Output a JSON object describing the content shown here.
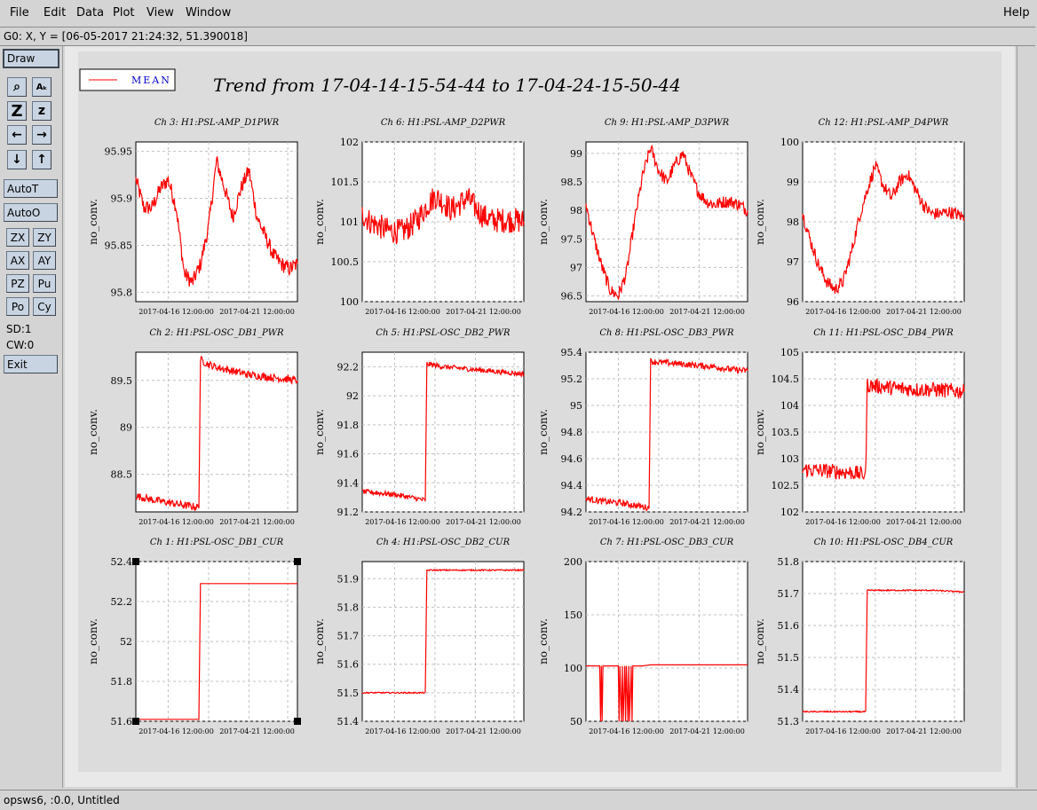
{
  "menu": {
    "items": [
      "File",
      "Edit",
      "Data",
      "Plot",
      "View",
      "Window"
    ],
    "help": "Help"
  },
  "coord_readout": "G0: X, Y = [06-05-2017 21:24:32, 51.390018]",
  "toolbar": {
    "draw": "Draw",
    "icons": [
      "magnify-icon",
      "text-size-icon",
      "zoom-large-icon",
      "zoom-small-icon",
      "arrow-left-icon",
      "arrow-right-icon",
      "arrow-down-icon",
      "arrow-up-icon"
    ],
    "icon_glyphs": [
      "⌕",
      "Aₖ",
      "Z",
      "z",
      "←",
      "→",
      "↓",
      "↑"
    ],
    "autot": "AutoT",
    "autoo": "AutoO",
    "small_buttons": [
      "ZX",
      "ZY",
      "AX",
      "AY",
      "PZ",
      "Pu",
      "Po",
      "Cy"
    ],
    "sd": "SD:1",
    "cw": "CW:0",
    "exit": "Exit"
  },
  "status": "opsws6, :0.0, Untitled",
  "legend": {
    "label": "MEAN",
    "color": "#ff0000"
  },
  "main_title": "Trend from 17-04-14-15-54-44 to 17-04-24-15-50-44",
  "colors": {
    "trace": "#ff0000",
    "legend_text": "#0000cc",
    "grid": "#c0c0c0"
  },
  "chart_data": [
    {
      "type": "line",
      "title": "Ch 3: H1:PSL-AMP_D1PWR",
      "ylabel": "no_conv.",
      "yticks": [
        "95.95",
        "95.9",
        "95.85",
        "95.8"
      ],
      "tick_vals": [
        95.95,
        95.9,
        95.85,
        95.8
      ],
      "ylim": [
        95.79,
        95.96
      ],
      "xticks": [
        "2017-04-16 12:00:00",
        "2017-04-21 12:00:00"
      ],
      "x": [
        0,
        0.05,
        0.1,
        0.15,
        0.2,
        0.25,
        0.3,
        0.35,
        0.4,
        0.45,
        0.5,
        0.55,
        0.6,
        0.65,
        0.7,
        0.75,
        0.8,
        0.85,
        0.9,
        0.95,
        1
      ],
      "values": [
        95.92,
        95.89,
        95.89,
        95.91,
        95.92,
        95.89,
        95.82,
        95.81,
        95.83,
        95.87,
        95.94,
        95.91,
        95.88,
        95.91,
        95.93,
        95.88,
        95.86,
        95.84,
        95.83,
        95.825,
        95.83
      ],
      "noise": 0.012
    },
    {
      "type": "line",
      "title": "Ch 6: H1:PSL-AMP_D2PWR",
      "ylabel": "no_conv.",
      "yticks": [
        "102",
        "101.5",
        "101",
        "100.5",
        "100"
      ],
      "tick_vals": [
        102,
        101.5,
        101,
        100.5,
        100
      ],
      "ylim": [
        100,
        102
      ],
      "xticks": [
        "2017-04-16 12:00:00",
        "2017-04-21 12:00:00"
      ],
      "x": [
        0,
        0.05,
        0.1,
        0.15,
        0.2,
        0.25,
        0.3,
        0.35,
        0.4,
        0.45,
        0.5,
        0.55,
        0.6,
        0.65,
        0.7,
        0.75,
        0.8,
        0.85,
        0.9,
        0.95,
        1
      ],
      "values": [
        101.1,
        101.0,
        100.95,
        100.9,
        100.88,
        100.88,
        100.95,
        101.05,
        101.2,
        101.32,
        101.25,
        101.15,
        101.22,
        101.3,
        101.18,
        101.07,
        101.02,
        101.02,
        101.02,
        101.02,
        101.0
      ],
      "noise": 0.02
    },
    {
      "type": "line",
      "title": "Ch 9: H1:PSL-AMP_D3PWR",
      "ylabel": "no_conv.",
      "yticks": [
        "99",
        "98.5",
        "98",
        "97.5",
        "97",
        "96.5"
      ],
      "tick_vals": [
        99,
        98.5,
        98,
        97.5,
        97,
        96.5
      ],
      "ylim": [
        96.4,
        99.2
      ],
      "xticks": [
        "2017-04-16 12:00:00",
        "2017-04-21 12:00:00"
      ],
      "x": [
        0,
        0.05,
        0.1,
        0.15,
        0.2,
        0.25,
        0.3,
        0.35,
        0.4,
        0.45,
        0.5,
        0.55,
        0.6,
        0.65,
        0.7,
        0.75,
        0.8,
        0.85,
        0.9,
        0.95,
        1
      ],
      "values": [
        98.1,
        97.5,
        97.0,
        96.6,
        96.5,
        96.9,
        97.8,
        98.6,
        99.1,
        98.7,
        98.5,
        98.8,
        99.0,
        98.6,
        98.3,
        98.15,
        98.1,
        98.15,
        98.15,
        98.1,
        98.0
      ],
      "noise": 0.01
    },
    {
      "type": "line",
      "title": "Ch 12: H1:PSL-AMP_D4PWR",
      "ylabel": "no_conv.",
      "yticks": [
        "100",
        "99",
        "98",
        "97",
        "96"
      ],
      "tick_vals": [
        100,
        99,
        98,
        97,
        96
      ],
      "ylim": [
        96,
        100
      ],
      "xticks": [
        "2017-04-16 12:00:00",
        "2017-04-21 12:00:00"
      ],
      "x": [
        0,
        0.05,
        0.1,
        0.15,
        0.2,
        0.25,
        0.3,
        0.35,
        0.4,
        0.45,
        0.5,
        0.55,
        0.6,
        0.65,
        0.7,
        0.75,
        0.8,
        0.85,
        0.9,
        0.95,
        1
      ],
      "values": [
        98.2,
        97.5,
        96.9,
        96.5,
        96.3,
        96.5,
        97.2,
        98.1,
        98.8,
        99.4,
        98.9,
        98.6,
        99.0,
        99.2,
        98.8,
        98.4,
        98.2,
        98.2,
        98.25,
        98.2,
        98.1
      ],
      "noise": 0.01
    },
    {
      "type": "line",
      "title": "Ch 2: H1:PSL-OSC_DB1_PWR",
      "ylabel": "no_conv.",
      "yticks": [
        "89.5",
        "89",
        "88.5"
      ],
      "tick_vals": [
        89.5,
        89,
        88.5
      ],
      "ylim": [
        88.1,
        89.8
      ],
      "xticks": [
        "2017-04-16 12:00:00",
        "2017-04-21 12:00:00"
      ],
      "x": [
        0,
        0.1,
        0.2,
        0.3,
        0.39,
        0.4,
        0.45,
        0.5,
        0.6,
        0.7,
        0.8,
        0.9,
        1
      ],
      "values": [
        88.27,
        88.23,
        88.2,
        88.17,
        88.15,
        89.72,
        89.67,
        89.64,
        89.6,
        89.56,
        89.54,
        89.52,
        89.5
      ],
      "noise": 0.006
    },
    {
      "type": "line",
      "title": "Ch 5: H1:PSL-OSC_DB2_PWR",
      "ylabel": "no_conv.",
      "yticks": [
        "92.2",
        "92",
        "91.8",
        "91.6",
        "91.4",
        "91.2"
      ],
      "tick_vals": [
        92.2,
        92,
        91.8,
        91.6,
        91.4,
        91.2
      ],
      "ylim": [
        91.2,
        92.3
      ],
      "xticks": [
        "2017-04-16 12:00:00",
        "2017-04-21 12:00:00"
      ],
      "x": [
        0,
        0.1,
        0.2,
        0.3,
        0.39,
        0.4,
        0.5,
        0.6,
        0.7,
        0.8,
        0.9,
        1
      ],
      "values": [
        91.34,
        91.33,
        91.32,
        91.3,
        91.28,
        92.22,
        92.2,
        92.19,
        92.18,
        92.17,
        92.16,
        92.15
      ],
      "noise": 0.004
    },
    {
      "type": "line",
      "title": "Ch 8: H1:PSL-OSC_DB3_PWR",
      "ylabel": "no_conv.",
      "yticks": [
        "95.4",
        "95.2",
        "95",
        "94.8",
        "94.6",
        "94.4",
        "94.2"
      ],
      "tick_vals": [
        95.4,
        95.2,
        95,
        94.8,
        94.6,
        94.4,
        94.2
      ],
      "ylim": [
        94.2,
        95.4
      ],
      "xticks": [
        "2017-04-16 12:00:00",
        "2017-04-21 12:00:00"
      ],
      "x": [
        0,
        0.1,
        0.2,
        0.3,
        0.39,
        0.4,
        0.5,
        0.6,
        0.7,
        0.8,
        0.9,
        1
      ],
      "values": [
        94.3,
        94.28,
        94.27,
        94.25,
        94.23,
        95.33,
        95.32,
        95.31,
        95.3,
        95.29,
        95.27,
        95.26
      ],
      "noise": 0.005
    },
    {
      "type": "line",
      "title": "Ch 11: H1:PSL-OSC_DB4_PWR",
      "ylabel": "no_conv.",
      "yticks": [
        "105",
        "104.5",
        "104",
        "103.5",
        "103",
        "102.5",
        "102"
      ],
      "tick_vals": [
        105,
        104.5,
        104,
        103.5,
        103,
        102.5,
        102
      ],
      "ylim": [
        102,
        105
      ],
      "xticks": [
        "2017-04-16 12:00:00",
        "2017-04-21 12:00:00"
      ],
      "x": [
        0,
        0.1,
        0.2,
        0.3,
        0.39,
        0.4,
        0.5,
        0.6,
        0.7,
        0.8,
        0.9,
        1
      ],
      "values": [
        102.8,
        102.78,
        102.76,
        102.74,
        102.7,
        104.38,
        104.35,
        104.32,
        104.3,
        104.3,
        104.28,
        104.26
      ],
      "noise": 0.012
    },
    {
      "type": "line",
      "title": "Ch 1: H1:PSL-OSC_DB1_CUR",
      "ylabel": "no_conv.",
      "yticks": [
        "52.4",
        "52.2",
        "52",
        "51.8",
        "51.6"
      ],
      "tick_vals": [
        52.4,
        52.2,
        52,
        51.8,
        51.6
      ],
      "ylim": [
        51.6,
        52.4
      ],
      "xticks": [
        "2017-04-16 12:00:00",
        "2017-04-21 12:00:00"
      ],
      "x": [
        0,
        0.2,
        0.39,
        0.4,
        0.6,
        0.8,
        1
      ],
      "values": [
        51.61,
        51.61,
        51.61,
        52.29,
        52.29,
        52.29,
        52.29
      ],
      "noise": 0
    },
    {
      "type": "line",
      "title": "Ch 4: H1:PSL-OSC_DB2_CUR",
      "ylabel": "no_conv.",
      "yticks": [
        "51.9",
        "51.8",
        "51.7",
        "51.6",
        "51.5",
        "51.4"
      ],
      "tick_vals": [
        51.9,
        51.8,
        51.7,
        51.6,
        51.5,
        51.4
      ],
      "ylim": [
        51.4,
        51.96
      ],
      "xticks": [
        "2017-04-16 12:00:00",
        "2017-04-21 12:00:00"
      ],
      "x": [
        0,
        0.2,
        0.39,
        0.4,
        0.6,
        0.8,
        1
      ],
      "values": [
        51.5,
        51.5,
        51.5,
        51.93,
        51.93,
        51.93,
        51.93
      ],
      "noise": 0.001
    },
    {
      "type": "line",
      "title": "Ch 7: H1:PSL-OSC_DB3_CUR",
      "ylabel": "no_conv.",
      "yticks": [
        "200",
        "150",
        "100",
        "50"
      ],
      "tick_vals": [
        200,
        150,
        100,
        50
      ],
      "ylim": [
        50,
        200
      ],
      "xticks": [
        "2017-04-16 12:00:00",
        "2017-04-21 12:00:00"
      ],
      "x": [
        0,
        0.085,
        0.09,
        0.095,
        0.1,
        0.105,
        0.2,
        0.205,
        0.21,
        0.22,
        0.225,
        0.23,
        0.24,
        0.245,
        0.25,
        0.26,
        0.265,
        0.27,
        0.28,
        0.285,
        0.29,
        0.3,
        0.35,
        0.4,
        0.6,
        0.8,
        1
      ],
      "values": [
        102,
        102,
        50,
        102,
        50,
        102,
        102,
        50,
        102,
        50,
        102,
        50,
        102,
        50,
        102,
        50,
        102,
        50,
        102,
        50,
        102,
        102,
        102,
        103,
        103,
        103,
        103
      ],
      "noise": 0
    },
    {
      "type": "line",
      "title": "Ch 10: H1:PSL-OSC_DB4_CUR",
      "ylabel": "no_conv.",
      "yticks": [
        "51.8",
        "51.7",
        "51.6",
        "51.5",
        "51.4",
        "51.3"
      ],
      "tick_vals": [
        51.8,
        51.7,
        51.6,
        51.5,
        51.4,
        51.3
      ],
      "ylim": [
        51.3,
        51.8
      ],
      "xticks": [
        "2017-04-16 12:00:00",
        "2017-04-21 12:00:00"
      ],
      "x": [
        0,
        0.2,
        0.39,
        0.4,
        0.6,
        0.8,
        1
      ],
      "values": [
        51.33,
        51.33,
        51.33,
        51.71,
        51.71,
        51.71,
        51.705
      ],
      "noise": 0.001
    }
  ]
}
